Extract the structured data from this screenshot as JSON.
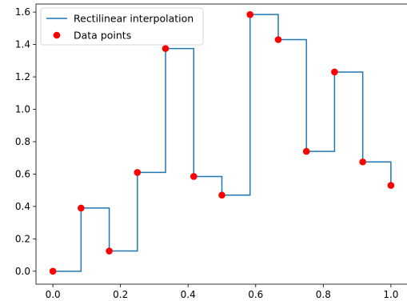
{
  "chart_data": {
    "type": "line",
    "title": "",
    "xlabel": "",
    "ylabel": "",
    "xlim": [
      -0.05,
      1.05
    ],
    "ylim": [
      -0.08,
      1.65
    ],
    "xticks": [
      0.0,
      0.2,
      0.4,
      0.6,
      0.8,
      1.0
    ],
    "xtick_labels": [
      "0.0",
      "0.2",
      "0.4",
      "0.6",
      "0.8",
      "1.0"
    ],
    "yticks": [
      0.0,
      0.2,
      0.4,
      0.6,
      0.8,
      1.0,
      1.2,
      1.4,
      1.6
    ],
    "ytick_labels": [
      "0.0",
      "0.2",
      "0.4",
      "0.6",
      "0.8",
      "1.0",
      "1.2",
      "1.4",
      "1.6"
    ],
    "grid": false,
    "legend_position": "top-left",
    "series": [
      {
        "name": "Rectilinear interpolation",
        "style": "step",
        "color": "#1f77b4",
        "x": [
          0.0,
          0.0833,
          0.1667,
          0.25,
          0.3333,
          0.4167,
          0.5,
          0.5833,
          0.6667,
          0.75,
          0.8333,
          0.9167,
          1.0
        ],
        "y": [
          0.0,
          0.39,
          0.125,
          0.61,
          1.375,
          0.585,
          0.47,
          1.585,
          1.43,
          0.74,
          1.23,
          0.675,
          0.53
        ]
      },
      {
        "name": "Data points",
        "style": "scatter",
        "color": "#ff0000",
        "x": [
          0.0,
          0.0833,
          0.1667,
          0.25,
          0.3333,
          0.4167,
          0.5,
          0.5833,
          0.6667,
          0.75,
          0.8333,
          0.9167,
          1.0
        ],
        "y": [
          0.0,
          0.39,
          0.125,
          0.61,
          1.375,
          0.585,
          0.47,
          1.585,
          1.43,
          0.74,
          1.23,
          0.675,
          0.53
        ]
      }
    ]
  }
}
